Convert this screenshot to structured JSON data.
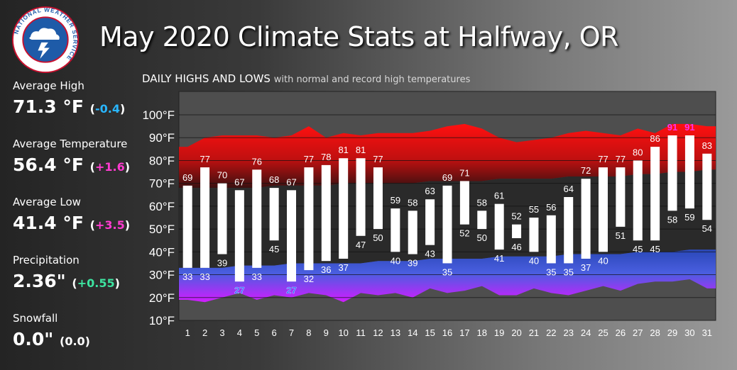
{
  "title": "May 2020 Climate Stats at Halfway, OR",
  "logo": {
    "text": "NATIONAL WEATHER SERVICE"
  },
  "stats": [
    {
      "label": "Average High",
      "value": "71.3 °F",
      "departure": "-0.4",
      "dep_color": "#29b6ff"
    },
    {
      "label": "Average Temperature",
      "value": "56.4 °F",
      "departure": "+1.6",
      "dep_color": "#ff3bd0"
    },
    {
      "label": "Average Low",
      "value": "41.4 °F",
      "departure": "+3.5",
      "dep_color": "#ff3bd0"
    },
    {
      "label": "Precipitation",
      "value": "2.36\"",
      "departure": "+0.55",
      "dep_color": "#3de3a0"
    },
    {
      "label": "Snowfall",
      "value": "0.0\"",
      "departure": "0.0",
      "dep_color": "#ffffff"
    }
  ],
  "chart_subtitle": {
    "main": "DAILY HIGHS AND LOWS",
    "sub": "with normal and record high temperatures"
  },
  "chart_data": {
    "type": "bar",
    "categories": [
      "1",
      "2",
      "3",
      "4",
      "5",
      "6",
      "7",
      "8",
      "9",
      "10",
      "11",
      "12",
      "13",
      "14",
      "15",
      "16",
      "17",
      "18",
      "19",
      "20",
      "21",
      "22",
      "23",
      "24",
      "25",
      "26",
      "27",
      "28",
      "29",
      "30",
      "31"
    ],
    "highs": [
      69,
      77,
      70,
      67,
      76,
      68,
      67,
      77,
      78,
      81,
      81,
      77,
      59,
      58,
      63,
      69,
      71,
      58,
      61,
      52,
      55,
      56,
      64,
      72,
      77,
      77,
      80,
      86,
      91,
      91,
      83
    ],
    "lows": [
      33,
      33,
      39,
      27,
      33,
      45,
      27,
      32,
      36,
      37,
      47,
      50,
      40,
      39,
      43,
      35,
      52,
      50,
      41,
      46,
      40,
      35,
      35,
      37,
      40,
      51,
      45,
      45,
      58,
      59,
      54
    ],
    "record_highs": [
      86,
      90,
      91,
      91,
      91,
      90,
      91,
      95,
      90,
      92,
      91,
      92,
      92,
      92,
      93,
      95,
      96,
      94,
      90,
      88,
      89,
      90,
      92,
      93,
      92,
      91,
      94,
      92,
      96,
      96,
      95
    ],
    "normal_highs": [
      68,
      68,
      68,
      68,
      68,
      69,
      69,
      69,
      69,
      70,
      70,
      70,
      70,
      70,
      71,
      71,
      71,
      71,
      72,
      72,
      72,
      72,
      73,
      73,
      73,
      73,
      74,
      74,
      75,
      75,
      76
    ],
    "normal_lows": [
      33,
      33,
      33,
      34,
      34,
      34,
      35,
      35,
      35,
      35,
      35,
      36,
      36,
      36,
      37,
      37,
      37,
      37,
      38,
      38,
      38,
      38,
      39,
      39,
      39,
      39,
      40,
      40,
      40,
      41,
      41
    ],
    "record_lows": [
      19,
      18,
      20,
      22,
      19,
      21,
      20,
      22,
      21,
      18,
      22,
      21,
      22,
      20,
      24,
      22,
      23,
      25,
      21,
      21,
      24,
      22,
      21,
      23,
      25,
      23,
      26,
      27,
      27,
      28,
      24
    ],
    "record_high_flags": [
      false,
      false,
      false,
      false,
      false,
      false,
      false,
      false,
      false,
      false,
      false,
      false,
      false,
      false,
      false,
      false,
      false,
      false,
      false,
      false,
      false,
      false,
      false,
      false,
      false,
      false,
      false,
      false,
      true,
      true,
      false
    ],
    "record_low_flags": [
      false,
      false,
      false,
      true,
      false,
      false,
      true,
      false,
      false,
      false,
      false,
      false,
      false,
      false,
      false,
      false,
      false,
      false,
      false,
      false,
      false,
      false,
      false,
      false,
      false,
      false,
      false,
      false,
      false,
      false,
      false
    ],
    "ylim": [
      10,
      100
    ],
    "yticks": [
      "10°F",
      "20°F",
      "30°F",
      "40°F",
      "50°F",
      "60°F",
      "70°F",
      "80°F",
      "90°F",
      "100°F"
    ],
    "colors": {
      "record_high_band": "#ff1a1a",
      "normal_band": "#2c2c2c",
      "low_band": "#3a5fd6",
      "record_low_band": "#d31aff",
      "bar": "#ffffff",
      "record_label": "#ff33ee"
    }
  }
}
